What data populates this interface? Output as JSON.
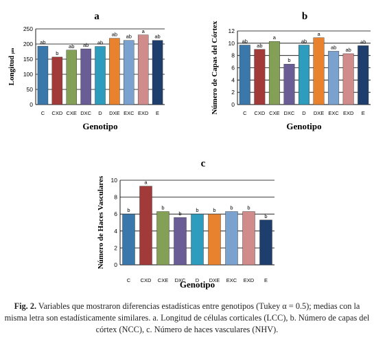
{
  "colors": [
    "#3A78AC",
    "#A33A3A",
    "#84A056",
    "#6A5C94",
    "#2E9DBD",
    "#E8822E",
    "#7BA2CF",
    "#D08B8B",
    "#1E3F6E"
  ],
  "caption": {
    "fig_label": "Fig. 2.",
    "text": "Variables que mostraron diferencias estadísticas entre genotipos (Tukey α = 0.5); medias con la misma letra son estadísticamente similares. a. Longitud de células corticales (LCC), b. Número de capas del córtex (NCC), c. Número de haces vasculares (NHV)."
  },
  "chart_data": [
    {
      "type": "bar",
      "panel": "a",
      "title": "a",
      "xlabel": "Genotipo",
      "ylabel": "Longitud ",
      "ylabel_unit": "µm",
      "categories": [
        "C",
        "CXD",
        "CXE",
        "DXC",
        "D",
        "DXE",
        "EXC",
        "EXD",
        "E"
      ],
      "values": [
        193,
        157,
        180,
        184,
        192,
        219,
        212,
        230,
        212
      ],
      "labels": [
        "ab",
        "b",
        "ab",
        "ab",
        "ab",
        "ab",
        "ab",
        "a",
        "ab"
      ],
      "ylim": [
        0,
        250
      ],
      "yticks": [
        0,
        50,
        100,
        150,
        200,
        250
      ],
      "grid": true
    },
    {
      "type": "bar",
      "panel": "b",
      "title": "b",
      "xlabel": "Genotipo",
      "ylabel": "Número de Capas del Córtex",
      "categories": [
        "C",
        "CXD",
        "CXE",
        "DXC",
        "D",
        "DXE",
        "EXC",
        "EXD",
        "E"
      ],
      "values": [
        9.7,
        9.0,
        10.3,
        6.6,
        9.7,
        10.9,
        8.7,
        8.3,
        9.6
      ],
      "labels": [
        "ab",
        "ab",
        "a",
        "b",
        "ab",
        "a",
        "ab",
        "ab",
        "ab"
      ],
      "ylim": [
        0,
        12
      ],
      "yticks": [
        0,
        2,
        4,
        6,
        8,
        10,
        12
      ],
      "grid": true
    },
    {
      "type": "bar",
      "panel": "c",
      "title": "c",
      "xlabel": "Genotipo",
      "ylabel": "Número de Haces Vasculares",
      "categories": [
        "C",
        "CXD",
        "CXE",
        "DXC",
        "D",
        "DXE",
        "EXC",
        "EXD",
        "E"
      ],
      "values": [
        6.0,
        9.3,
        6.3,
        5.6,
        6.0,
        6.0,
        6.3,
        6.3,
        5.3
      ],
      "labels": [
        "b",
        "a",
        "b",
        "b",
        "b",
        "b",
        "b",
        "b",
        "b"
      ],
      "ylim": [
        0,
        10
      ],
      "yticks": [
        0,
        2,
        4,
        6,
        8,
        10
      ],
      "grid": true
    }
  ]
}
